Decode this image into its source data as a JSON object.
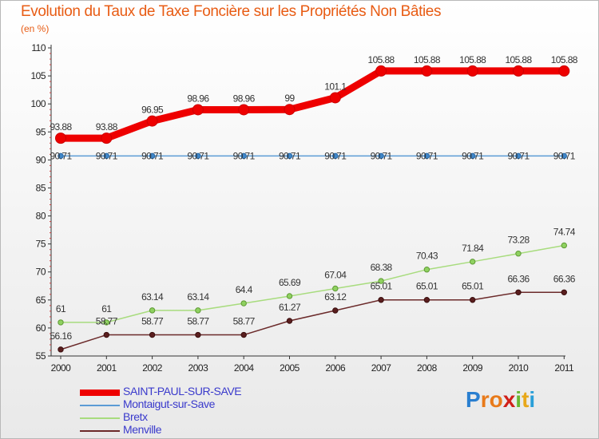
{
  "title": "Evolution du Taux de Taxe Foncière sur les Propriétés Non Bâties",
  "subtitle": "(en %)",
  "brand": {
    "letters": [
      "P",
      "r",
      "o",
      "x",
      "i",
      "t",
      "i"
    ],
    "colors": [
      "#2a7fd0",
      "#e87a1a",
      "#e87a1a",
      "#d0201a",
      "#6ab833",
      "#e8a81a",
      "#2a9fd8"
    ]
  },
  "chart_data": {
    "type": "line",
    "title": "Evolution du Taux de Taxe Foncière sur les Propriétés Non Bâties",
    "ylabel": "(en %)",
    "xlabel": "",
    "x": [
      "2000",
      "2001",
      "2002",
      "2003",
      "2004",
      "2005",
      "2006",
      "2007",
      "2008",
      "2009",
      "2010",
      "2011"
    ],
    "ylim": [
      55,
      110
    ],
    "yticks": [
      55,
      60,
      65,
      70,
      75,
      80,
      85,
      90,
      95,
      100,
      105,
      110
    ],
    "series": [
      {
        "name": "SAINT-PAUL-SUR-SAVE",
        "color": "#ee0000",
        "values": [
          93.88,
          93.88,
          96.95,
          98.96,
          98.96,
          99,
          101.1,
          105.88,
          105.88,
          105.88,
          105.88,
          105.88
        ],
        "labels": [
          "93.88",
          "93.88",
          "96.95",
          "98.96",
          "98.96",
          "99",
          "101.1",
          "105.88",
          "105.88",
          "105.88",
          "105.88",
          "105.88"
        ]
      },
      {
        "name": "Montaigut-sur-Save",
        "color": "#5b9bd5",
        "values": [
          90.71,
          90.71,
          90.71,
          90.71,
          90.71,
          90.71,
          90.71,
          90.71,
          90.71,
          90.71,
          90.71,
          90.71
        ],
        "labels": [
          "90.71",
          "90.71",
          "90.71",
          "90.71",
          "90.71",
          "90.71",
          "90.71",
          "90.71",
          "90.71",
          "90.71",
          "90.71",
          "90.71"
        ]
      },
      {
        "name": "Bretx",
        "color": "#9ad66b",
        "values": [
          61,
          61,
          63.14,
          63.14,
          64.4,
          65.69,
          67.04,
          68.38,
          70.43,
          71.84,
          73.28,
          74.74
        ],
        "labels": [
          "61",
          "61",
          "63.14",
          "63.14",
          "64.4",
          "65.69",
          "67.04",
          "68.38",
          "70.43",
          "71.84",
          "73.28",
          "74.74"
        ]
      },
      {
        "name": "Menville",
        "color": "#6b2a2a",
        "values": [
          56.16,
          58.77,
          58.77,
          58.77,
          58.77,
          61.27,
          63.12,
          65.01,
          65.01,
          65.01,
          66.36,
          66.36
        ],
        "labels": [
          "56.16",
          "58.77",
          "58.77",
          "58.77",
          "58.77",
          "61.27",
          "63.12",
          "65.01",
          "65.01",
          "65.01",
          "66.36",
          "66.36"
        ]
      }
    ],
    "legend": "bottom-left",
    "grid": false
  }
}
